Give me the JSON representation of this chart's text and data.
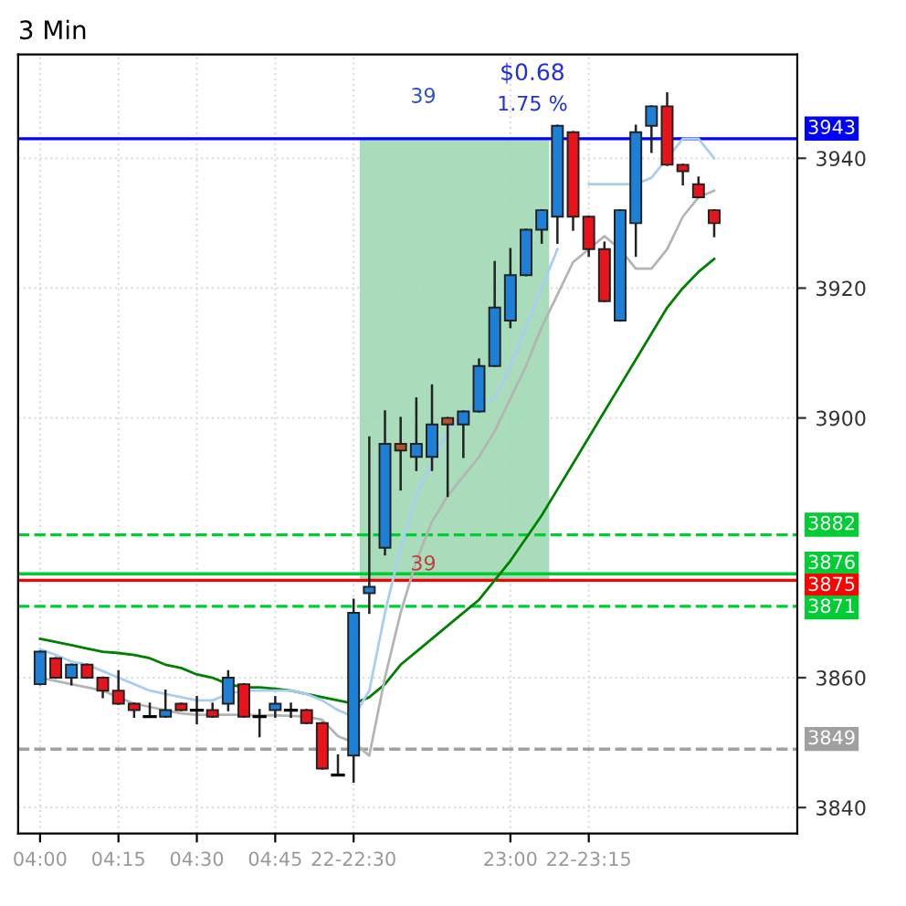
{
  "chart_data": {
    "type": "candlestick",
    "title": "3 Min",
    "categories": [
      "04:00",
      null,
      null,
      null,
      null,
      "04:15",
      null,
      null,
      null,
      null,
      "04:30",
      null,
      null,
      null,
      null,
      "04:45",
      null,
      null,
      null,
      null,
      "22-22:30",
      null,
      null,
      null,
      null,
      null,
      null,
      null,
      null,
      null,
      "23:00",
      null,
      null,
      null,
      null,
      "22-23:15",
      null,
      null,
      null,
      null,
      null,
      null,
      null,
      null
    ],
    "ohlc": [
      [
        3859,
        3864,
        3859,
        3864
      ],
      [
        3863,
        3863,
        3860,
        3860
      ],
      [
        3860,
        3862,
        3859,
        3862
      ],
      [
        3862,
        3862,
        3860,
        3860
      ],
      [
        3860,
        3860,
        3857,
        3858
      ],
      [
        3858,
        3861,
        3856,
        3856
      ],
      [
        3856,
        3856,
        3854,
        3855
      ],
      [
        3854,
        3856,
        3854,
        3854
      ],
      [
        3854,
        3858,
        3854,
        3855
      ],
      [
        3856,
        3856,
        3855,
        3855
      ],
      [
        3855,
        3857,
        3853,
        3855
      ],
      [
        3855,
        3856,
        3854,
        3854
      ],
      [
        3856,
        3861,
        3855,
        3860
      ],
      [
        3859,
        3859,
        3854,
        3854
      ],
      [
        3854,
        3855,
        3851,
        3854
      ],
      [
        3855,
        3857,
        3854,
        3856
      ],
      [
        3855,
        3856,
        3854,
        3855
      ],
      [
        3855,
        3855,
        3853,
        3853
      ],
      [
        3853,
        3853,
        3846,
        3846
      ],
      [
        3845,
        3848,
        3845,
        3845
      ],
      [
        3848,
        3872,
        3844,
        3870
      ],
      [
        3873,
        3897,
        3870,
        3874
      ],
      [
        3880,
        3901,
        3879,
        3896
      ],
      [
        3896,
        3900,
        3889,
        3895
      ],
      [
        3894,
        3903,
        3892,
        3896
      ],
      [
        3894,
        3905,
        3892,
        3899
      ],
      [
        3900,
        3900,
        3888,
        3899
      ],
      [
        3899,
        3901,
        3894,
        3901
      ],
      [
        3901,
        3909,
        3901,
        3908
      ],
      [
        3908,
        3924,
        3908,
        3917
      ],
      [
        3915,
        3926,
        3914,
        3922
      ],
      [
        3922,
        3929,
        3922,
        3929
      ],
      [
        3929,
        3932,
        3927,
        3932
      ],
      [
        3931,
        3945,
        3927,
        3945
      ],
      [
        3944,
        3944,
        3929,
        3931
      ],
      [
        3931,
        3931,
        3925,
        3926
      ],
      [
        3926,
        3927,
        3918,
        3918
      ],
      [
        3915,
        3932,
        3915,
        3932
      ],
      [
        3930,
        3945,
        3925,
        3944
      ],
      [
        3945,
        3948,
        3941,
        3948
      ],
      [
        3948,
        3950,
        3939,
        3939
      ],
      [
        3939,
        3939,
        3936,
        3938
      ],
      [
        3936,
        3937,
        3934,
        3934
      ],
      [
        3932,
        3932,
        3928,
        3930
      ]
    ],
    "colors": [
      "#1e7fd6",
      "#e8141b",
      "#1e7fd6",
      "#e8141b",
      "#e8141b",
      "#e8141b",
      "#e8141b",
      "#000000",
      "#1e7fd6",
      "#e8141b",
      "#000000",
      "#e8141b",
      "#1e7fd6",
      "#e8141b",
      "#000000",
      "#1e7fd6",
      "#000000",
      "#e8141b",
      "#e8141b",
      "#000000",
      "#1e7fd6",
      "#1e7fd6",
      "#1e7fd6",
      "#b5502c",
      "#1e7fd6",
      "#1e7fd6",
      "#b5502c",
      "#1e7fd6",
      "#1e7fd6",
      "#1e7fd6",
      "#1e7fd6",
      "#1e7fd6",
      "#1e7fd6",
      "#1e7fd6",
      "#e8141b",
      "#e8141b",
      "#e8141b",
      "#1e7fd6",
      "#1e7fd6",
      "#1e7fd6",
      "#e8141b",
      "#e8141b",
      "#e8141b",
      "#e8141b"
    ],
    "series": [
      {
        "type": "line",
        "color": "#008000",
        "values": [
          3866,
          3865.5,
          3865,
          3864.5,
          3864,
          3863.8,
          3863.5,
          3863,
          3862,
          3861.5,
          3860.5,
          3860,
          3859,
          3858.5,
          3858.5,
          3858.3,
          3858,
          3857.5,
          3857,
          3856.5,
          3856,
          3857,
          3859,
          3862,
          3864,
          3866,
          3868,
          3870,
          3872,
          3875,
          3878,
          3881.5,
          3885,
          3889,
          3893,
          3897,
          3901,
          3905,
          3909,
          3913,
          3917,
          3920,
          3922.5,
          3924.5
        ]
      },
      {
        "type": "line",
        "color": "#a9cdf0",
        "values": [
          3864.4,
          3863.5,
          3862.5,
          3862,
          3861,
          3860,
          3859,
          3858,
          3857.5,
          3857,
          3856.5,
          3856.5,
          3857.5,
          3858,
          3858,
          3858,
          3858,
          3857.5,
          3856.5,
          3855,
          3854,
          3858,
          3870,
          3880,
          3888,
          3893,
          3898,
          3901,
          3902,
          3903,
          3908,
          3914,
          3920,
          3926,
          null,
          3936,
          3936,
          3936,
          3936,
          3937,
          3940,
          3943,
          3943,
          3940
        ]
      },
      {
        "type": "line",
        "color": "#b4b4b4",
        "values": [
          3860,
          3859.5,
          3859,
          3858.5,
          3858,
          3857,
          3856,
          3855.5,
          3855,
          3854.5,
          3854.3,
          3854.3,
          3854.3,
          3854.3,
          3854.2,
          3854.2,
          3854.1,
          3854,
          3853.5,
          3851,
          3850,
          3848,
          3860,
          3870,
          3878,
          3884,
          3888,
          3891,
          3894,
          3898,
          3903,
          3908,
          3914,
          3919,
          3924,
          3926,
          3928,
          3926,
          3923,
          3923,
          3926,
          3931,
          3934,
          3935
        ]
      }
    ],
    "ylim": [
      3836,
      3956
    ],
    "yticks": [
      3840,
      3860,
      3900,
      3920,
      3940
    ],
    "grid": true,
    "bands": [
      {
        "axis": "y",
        "from": 3875,
        "to": 3943,
        "color": "#9fd9b4"
      }
    ],
    "ref_lines": [
      {
        "axis": "y",
        "value": 3943,
        "label": "3943",
        "color": "#0000ff",
        "line_style": "solid"
      },
      {
        "axis": "y",
        "value": 3882,
        "label": "3882",
        "color": "#00cc33",
        "line_style": "dashed"
      },
      {
        "axis": "y",
        "value": 3876,
        "label": "3876",
        "color": "#00cc33",
        "line_style": "solid"
      },
      {
        "axis": "y",
        "value": 3875,
        "label": "3875",
        "color": "#ff0000",
        "line_style": "solid"
      },
      {
        "axis": "y",
        "value": 3871,
        "label": "3871",
        "color": "#00cc33",
        "line_style": "dashed"
      },
      {
        "axis": "y",
        "value": 3849,
        "label": "3849",
        "color": "#a0a0a0",
        "line_style": "dashed"
      }
    ],
    "annotations": [
      "39",
      "39",
      "$0.68",
      "1.75 %"
    ]
  }
}
